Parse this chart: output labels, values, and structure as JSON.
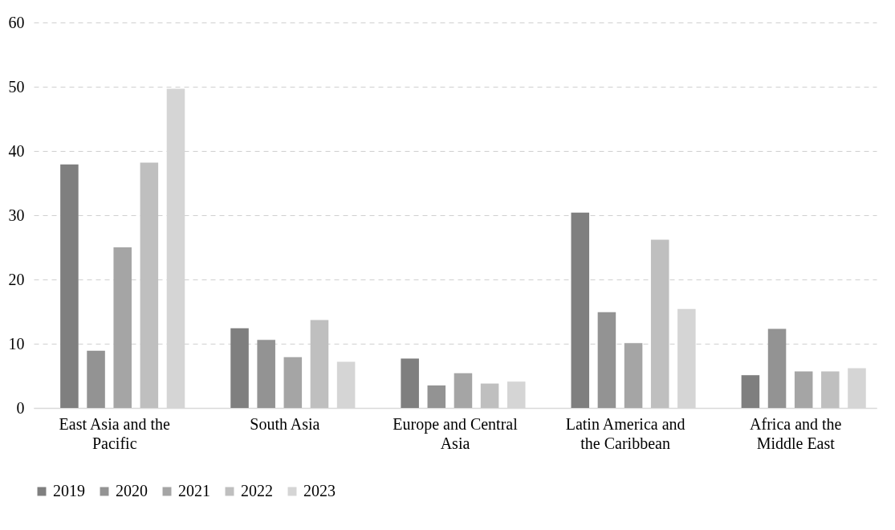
{
  "chart_data": {
    "type": "bar",
    "categories": [
      "East Asia and the Pacific",
      "South Asia",
      "Europe and Central Asia",
      "Latin America and the Caribbean",
      "Africa and the Middle East"
    ],
    "series": [
      {
        "name": "2019",
        "color": "#7f7f7f",
        "values": [
          37.9,
          12.4,
          7.7,
          30.4,
          5.1
        ]
      },
      {
        "name": "2020",
        "color": "#939393",
        "values": [
          8.9,
          10.6,
          3.5,
          14.9,
          12.3
        ]
      },
      {
        "name": "2021",
        "color": "#a5a5a5",
        "values": [
          25.0,
          7.9,
          5.4,
          10.1,
          5.7
        ]
      },
      {
        "name": "2022",
        "color": "#bfbfbf",
        "values": [
          38.2,
          13.7,
          3.8,
          26.2,
          5.7
        ]
      },
      {
        "name": "2023",
        "color": "#d5d5d5",
        "values": [
          49.7,
          7.2,
          4.1,
          15.4,
          6.2
        ]
      }
    ],
    "ylim": [
      0,
      60
    ],
    "yticks": [
      0,
      10,
      20,
      30,
      40,
      50,
      60
    ],
    "grid": "y",
    "legend": "bottom"
  }
}
